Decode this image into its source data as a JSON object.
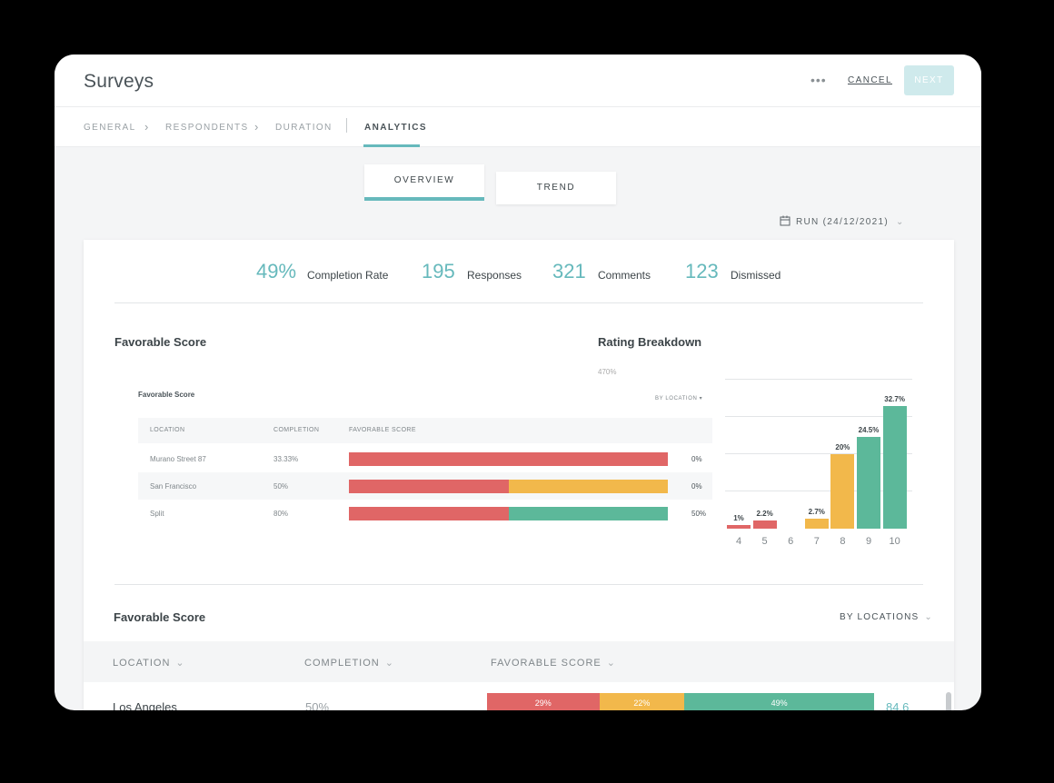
{
  "window": {
    "title": "Surveys",
    "more_label": "•••",
    "cancel_label": "CANCEL",
    "next_label": "NEXT"
  },
  "steps": [
    {
      "label": "GENERAL"
    },
    {
      "label": "RESPONDENTS"
    },
    {
      "label": "DURATION"
    },
    {
      "label": "ANALYTICS",
      "active": true
    }
  ],
  "step_separator": "›",
  "views": {
    "overview": "OVERVIEW",
    "trend": "TREND"
  },
  "run_selector": {
    "label": "RUN (24/12/2021)",
    "icon": "calendar-icon"
  },
  "stats": [
    {
      "value": "49%",
      "label": "Completion Rate"
    },
    {
      "value": "195",
      "label": "Responses"
    },
    {
      "value": "321",
      "label": "Comments"
    },
    {
      "value": "123",
      "label": "Dismissed"
    }
  ],
  "favorable_section": {
    "title": "Favorable Score",
    "inner_title": "Favorable Score",
    "filter": "BY LOCATION ▾",
    "columns": [
      "LOCATION",
      "COMPLETION",
      "FAVORABLE SCORE"
    ],
    "rows": [
      {
        "location": "Murano Street 87",
        "completion": "33.33%",
        "red": 100,
        "yellow": 0,
        "green": 0,
        "pct": "0%"
      },
      {
        "location": "San Francisco",
        "completion": "50%",
        "red": 50,
        "yellow": 50,
        "green": 0,
        "pct": "0%"
      },
      {
        "location": "Split",
        "completion": "80%",
        "red": 50,
        "yellow": 0,
        "green": 50,
        "pct": "50%"
      }
    ]
  },
  "rating_section": {
    "title": "Rating Breakdown",
    "cut_label": "470%"
  },
  "chart_data": {
    "type": "bar",
    "categories": [
      "4",
      "5",
      "6",
      "7",
      "8",
      "9",
      "10"
    ],
    "values": [
      1,
      2.2,
      0,
      2.7,
      20,
      24.5,
      32.7
    ],
    "labels": [
      "1%",
      "2.2%",
      "",
      "2.7%",
      "20%",
      "24.5%",
      "32.7%"
    ],
    "colors": [
      "#e06666",
      "#e06666",
      "#e06666",
      "#f2b84b",
      "#f2b84b",
      "#5cb89a",
      "#5cb89a"
    ],
    "grid": true
  },
  "locations_table": {
    "title": "Favorable Score",
    "filter": "BY LOCATIONS",
    "columns": [
      "LOCATION",
      "COMPLETION",
      "FAVORABLE SCORE"
    ],
    "rows": [
      {
        "location": "Los Angeles",
        "completion": "50%",
        "red": "29%",
        "yellow": "22%",
        "green": "49%",
        "red_v": 29,
        "yellow_v": 22,
        "green_v": 49,
        "score": "84.6"
      }
    ]
  },
  "colors": {
    "accent": "#66b9bc",
    "red": "#e06666",
    "yellow": "#f2b84b",
    "green": "#5cb89a"
  }
}
